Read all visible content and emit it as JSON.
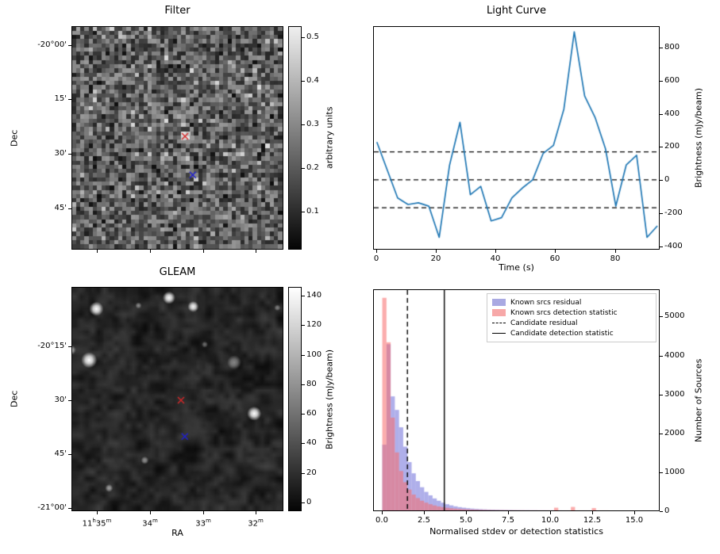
{
  "colors": {
    "line": "#1f77b4",
    "hist_residual_fill": "rgba(110,110,216,0.55)",
    "hist_detstat_fill": "rgba(247,105,105,0.55)",
    "annotation": "#000000"
  },
  "chart_data": [
    {
      "type": "heatmap",
      "panel": "top-left",
      "title": "Filter",
      "xlabel": "",
      "ylabel": "Dec",
      "yticks": [
        {
          "label": "-20°00'",
          "f": 0.085
        },
        {
          "label": "15'",
          "f": 0.326
        },
        {
          "label": "30'",
          "f": 0.571
        },
        {
          "label": "45'",
          "f": 0.816
        }
      ],
      "xticks_f": [
        0.12,
        0.37,
        0.62,
        0.87
      ],
      "colorbar": {
        "label": "arbitrary units",
        "ticks": [
          {
            "label": "0.5",
            "f": 0.05
          },
          {
            "label": "0.4",
            "f": 0.245
          },
          {
            "label": "0.3",
            "f": 0.44
          },
          {
            "label": "0.2",
            "f": 0.635
          },
          {
            "label": "0.1",
            "f": 0.83
          }
        ]
      },
      "markers": [
        {
          "shape": "x",
          "color": "#d62728",
          "fx": 0.536,
          "fy": 0.493
        },
        {
          "shape": "x",
          "color": "#1f1fd0",
          "fx": 0.573,
          "fy": 0.667
        }
      ],
      "description": "pixelated grayscale noise map with bright patch at red X"
    },
    {
      "type": "line",
      "panel": "top-right",
      "title": "Light Curve",
      "xlabel": "Time (s)",
      "ylabel": "Brightness (mJy/beam)",
      "xlim": [
        -1,
        95
      ],
      "ylim": [
        -420,
        930
      ],
      "x": [
        0,
        3.5,
        7,
        10.5,
        14,
        17.5,
        21,
        24.5,
        28,
        31.5,
        35,
        38.5,
        42,
        45.5,
        49,
        52.5,
        56,
        59.5,
        63,
        66.5,
        70,
        73.5,
        77,
        80.5,
        84,
        87.5,
        91,
        94.5
      ],
      "y": [
        230,
        60,
        -110,
        -150,
        -140,
        -160,
        -350,
        90,
        350,
        -90,
        -40,
        -250,
        -230,
        -110,
        -50,
        0,
        160,
        210,
        430,
        900,
        510,
        380,
        190,
        -160,
        90,
        150,
        -350,
        -280
      ],
      "dashed_hlines": [
        170,
        0,
        -170
      ],
      "xticks": [
        {
          "label": "0",
          "v": 0
        },
        {
          "label": "20",
          "v": 20
        },
        {
          "label": "40",
          "v": 40
        },
        {
          "label": "60",
          "v": 60
        },
        {
          "label": "80",
          "v": 80
        }
      ],
      "yticks": [
        {
          "label": "800",
          "v": 800
        },
        {
          "label": "600",
          "v": 600
        },
        {
          "label": "400",
          "v": 400
        },
        {
          "label": "200",
          "v": 200
        },
        {
          "label": "0",
          "v": 0
        },
        {
          "label": "-200",
          "v": -200
        },
        {
          "label": "-400",
          "v": -400
        }
      ]
    },
    {
      "type": "heatmap",
      "panel": "bottom-left",
      "title": "GLEAM",
      "xlabel": "RA",
      "ylabel": "Dec",
      "yticks": [
        {
          "label": "-20°15'",
          "f": 0.265
        },
        {
          "label": "30'",
          "f": 0.505
        },
        {
          "label": "45'",
          "f": 0.745
        },
        {
          "label": "-21°00'",
          "f": 0.985
        }
      ],
      "xticks": [
        {
          "segs": [
            [
              "11",
              0
            ],
            [
              "h",
              1
            ],
            [
              "35",
              0
            ],
            [
              "m",
              1
            ]
          ],
          "f": 0.12
        },
        {
          "segs": [
            [
              "34",
              0
            ],
            [
              "m",
              1
            ]
          ],
          "f": 0.37
        },
        {
          "segs": [
            [
              "33",
              0
            ],
            [
              "m",
              1
            ]
          ],
          "f": 0.62
        },
        {
          "segs": [
            [
              "32",
              0
            ],
            [
              "m",
              1
            ]
          ],
          "f": 0.87
        }
      ],
      "colorbar": {
        "label": "Brightness (mJy/beam)",
        "ticks": [
          {
            "label": "140",
            "f": 0.04
          },
          {
            "label": "120",
            "f": 0.171
          },
          {
            "label": "100",
            "f": 0.303
          },
          {
            "label": "80",
            "f": 0.434
          },
          {
            "label": "60",
            "f": 0.566
          },
          {
            "label": "40",
            "f": 0.697
          },
          {
            "label": "20",
            "f": 0.829
          },
          {
            "label": "0",
            "f": 0.96
          }
        ]
      },
      "markers": [
        {
          "shape": "x",
          "color": "#d62728",
          "fx": 0.517,
          "fy": 0.505
        },
        {
          "shape": "x",
          "color": "#1f1fd0",
          "fx": 0.535,
          "fy": 0.668
        }
      ],
      "blobs": [
        {
          "fx": 0.115,
          "fy": 0.095,
          "r": 9,
          "a": 1.0
        },
        {
          "fx": 0.46,
          "fy": 0.045,
          "r": 8,
          "a": 1.0
        },
        {
          "fx": 0.575,
          "fy": 0.085,
          "r": 7,
          "a": 0.95
        },
        {
          "fx": 0.08,
          "fy": 0.325,
          "r": 10,
          "a": 1.0
        },
        {
          "fx": -0.005,
          "fy": 0.28,
          "r": 6,
          "a": 0.6
        },
        {
          "fx": 0.77,
          "fy": 0.335,
          "r": 9,
          "a": 0.45
        },
        {
          "fx": 0.865,
          "fy": 0.565,
          "r": 9,
          "a": 1.0
        },
        {
          "fx": 0.345,
          "fy": 0.775,
          "r": 5,
          "a": 0.5
        },
        {
          "fx": 0.175,
          "fy": 0.9,
          "r": 5,
          "a": 0.55
        },
        {
          "fx": 0.315,
          "fy": 0.08,
          "r": 4,
          "a": 0.45
        },
        {
          "fx": 0.63,
          "fy": 0.255,
          "r": 4,
          "a": 0.35
        },
        {
          "fx": 0.975,
          "fy": 0.09,
          "r": 4,
          "a": 0.4
        }
      ],
      "description": "smooth dark grayscale sky image with bright white point sources"
    },
    {
      "type": "bar",
      "panel": "bottom-right",
      "title": "",
      "xlabel": "Normalised stdev or detection statistics",
      "ylabel": "Number of Sources",
      "xlim": [
        -0.5,
        16.5
      ],
      "ylim": [
        0,
        5700
      ],
      "bin_start": 0,
      "bin_width": 0.25,
      "series": [
        {
          "name": "Known srcs residual",
          "values": [
            1700,
            4300,
            2950,
            2600,
            2150,
            1650,
            1250,
            960,
            760,
            600,
            480,
            390,
            310,
            250,
            200,
            160,
            130,
            105,
            85,
            70,
            57,
            47,
            38,
            31,
            26,
            21,
            18,
            15,
            12,
            10,
            9,
            7,
            6,
            5,
            5,
            4,
            4,
            3,
            3,
            2,
            2,
            2,
            2,
            1,
            1,
            1,
            1,
            1,
            1,
            1,
            1,
            0,
            0,
            0,
            0,
            0,
            0,
            0,
            0,
            0,
            0,
            0,
            0,
            0
          ]
        },
        {
          "name": "Known srcs detection statistic",
          "values": [
            5500,
            4350,
            2400,
            1500,
            1020,
            730,
            540,
            410,
            320,
            250,
            200,
            160,
            128,
            103,
            84,
            68,
            56,
            46,
            38,
            31,
            26,
            22,
            18,
            15,
            13,
            11,
            9,
            8,
            7,
            6,
            5,
            5,
            4,
            4,
            3,
            3,
            3,
            2,
            2,
            2,
            2,
            70,
            1,
            1,
            1,
            90,
            1,
            1,
            1,
            1,
            60,
            1,
            1,
            1,
            0,
            0,
            0,
            0,
            0,
            0,
            0,
            0,
            0,
            0
          ]
        }
      ],
      "vlines": [
        {
          "name": "Candidate residual",
          "style": "dashed",
          "x": 1.5
        },
        {
          "name": "Candidate detection statistic",
          "style": "solid",
          "x": 3.7
        }
      ],
      "xticks": [
        {
          "label": "0.0",
          "v": 0
        },
        {
          "label": "2.5",
          "v": 2.5
        },
        {
          "label": "5.0",
          "v": 5
        },
        {
          "label": "7.5",
          "v": 7.5
        },
        {
          "label": "10.0",
          "v": 10
        },
        {
          "label": "12.5",
          "v": 12.5
        },
        {
          "label": "15.0",
          "v": 15
        }
      ],
      "yticks": [
        {
          "label": "5000",
          "v": 5000
        },
        {
          "label": "4000",
          "v": 4000
        },
        {
          "label": "3000",
          "v": 3000
        },
        {
          "label": "2000",
          "v": 2000
        },
        {
          "label": "1000",
          "v": 1000
        },
        {
          "label": "0",
          "v": 0
        }
      ],
      "legend": [
        {
          "label": "Known srcs residual",
          "swatch": "patch",
          "color": "#a9a9e2"
        },
        {
          "label": "Known srcs detection statistic",
          "swatch": "patch",
          "color": "#f7a8a8"
        },
        {
          "label": "Candidate residual",
          "swatch": "dashed-line",
          "color": "#000000"
        },
        {
          "label": "Candidate detection statistic",
          "swatch": "solid-line",
          "color": "#000000"
        }
      ]
    }
  ]
}
